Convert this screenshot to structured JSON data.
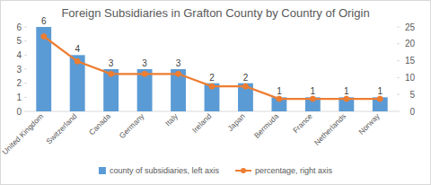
{
  "chart_data": {
    "type": "bar",
    "title": "Foreign Subsidiaries in Grafton County by Country of Origin",
    "categories": [
      "United Kingdom",
      "Switzerland",
      "Canada",
      "Germany",
      "Italy",
      "Ireland",
      "Japan",
      "Bermuda",
      "France",
      "Netherlands",
      "Norway"
    ],
    "series": [
      {
        "name": "county of subsidiaries, left axis",
        "type": "bar",
        "color": "#5b9bd5",
        "data_labels": true,
        "values": [
          6,
          4,
          3,
          3,
          3,
          2,
          2,
          1,
          1,
          1,
          1
        ]
      },
      {
        "name": "percentage, right axis",
        "type": "line",
        "color": "#ed7d31",
        "marker": "circle",
        "line_style": "solid",
        "axis": "y2",
        "values": [
          22.2,
          14.8,
          11.1,
          11.1,
          11.1,
          7.4,
          7.4,
          3.7,
          3.7,
          3.7,
          3.7
        ]
      }
    ],
    "ylim": [
      0,
      6
    ],
    "yticks": [
      0,
      1,
      2,
      3,
      4,
      5,
      6
    ],
    "y2lim": [
      0,
      25
    ],
    "y2ticks": [
      0,
      5,
      10,
      15,
      20,
      25
    ],
    "grid": false,
    "legend": "bottom"
  }
}
